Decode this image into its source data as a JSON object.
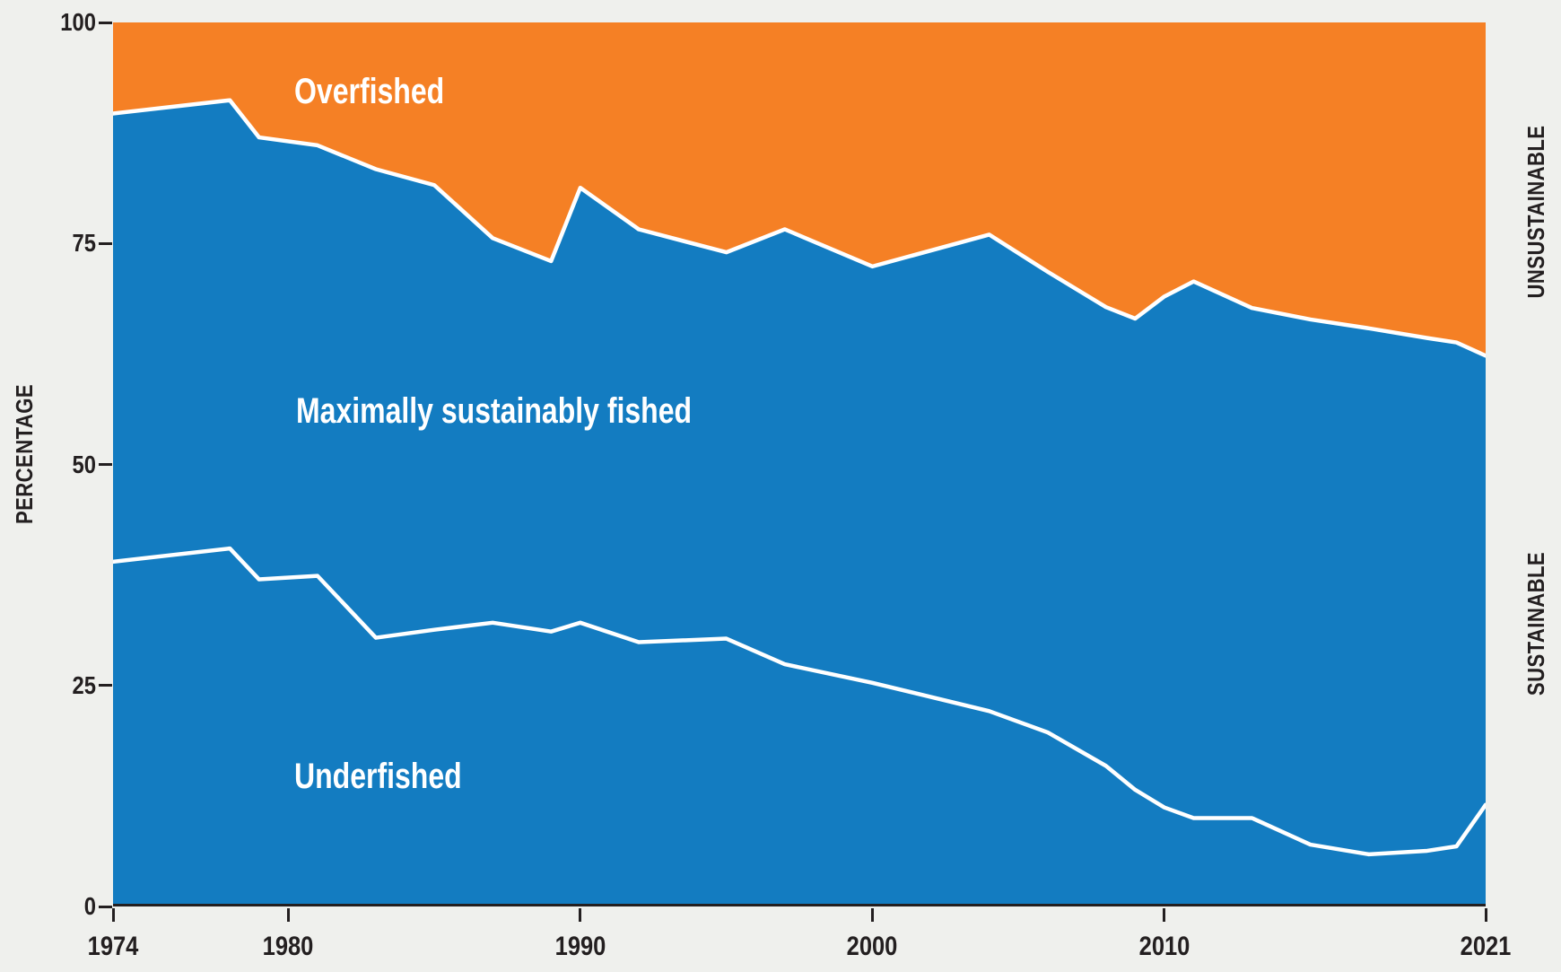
{
  "page": {
    "background_color": "#EFF0ED"
  },
  "chart_data": {
    "type": "area",
    "stacked": true,
    "title": "",
    "xlabel": "",
    "ylabel": "PERCENTAGE",
    "xlim": [
      1974,
      2021
    ],
    "ylim": [
      0,
      100
    ],
    "grid": false,
    "legend_position": "labels-inside-areas",
    "x": [
      1974,
      1978,
      1979,
      1981,
      1983,
      1985,
      1987,
      1989,
      1990,
      1992,
      1995,
      1997,
      2000,
      2004,
      2006,
      2008,
      2009,
      2010,
      2011,
      2013,
      2015,
      2017,
      2019,
      2020,
      2021
    ],
    "series": [
      {
        "name": "Underfished",
        "color": "#137CC1",
        "values": [
          39.0,
          40.5,
          37.0,
          37.4,
          30.4,
          31.3,
          32.1,
          31.1,
          32.1,
          29.9,
          30.3,
          27.4,
          25.3,
          22.1,
          19.7,
          15.9,
          13.2,
          11.2,
          10.0,
          10.0,
          7.0,
          5.9,
          6.3,
          6.8,
          11.5
        ]
      },
      {
        "name": "Maximally sustainably fished",
        "color": "#137CC1",
        "values": [
          50.7,
          50.7,
          50.0,
          48.7,
          53.0,
          50.3,
          43.5,
          41.9,
          49.2,
          46.7,
          43.7,
          49.2,
          47.1,
          53.9,
          52.1,
          51.9,
          53.3,
          57.8,
          60.7,
          57.7,
          59.4,
          59.5,
          58.0,
          57.0,
          50.8
        ]
      },
      {
        "name": "Overfished",
        "color": "#F58025",
        "values": [
          10.3,
          8.8,
          13.0,
          13.9,
          16.6,
          18.4,
          24.4,
          27.0,
          18.7,
          23.4,
          26.0,
          23.4,
          27.6,
          24.0,
          28.2,
          32.2,
          33.5,
          31.0,
          29.3,
          32.3,
          33.6,
          34.6,
          35.7,
          36.2,
          37.7
        ]
      }
    ],
    "y_ticks": [
      {
        "value": 0,
        "label": "0"
      },
      {
        "value": 25,
        "label": "25"
      },
      {
        "value": 50,
        "label": "50"
      },
      {
        "value": 75,
        "label": "75"
      },
      {
        "value": 100,
        "label": "100"
      }
    ],
    "x_ticks": [
      {
        "year": 1974,
        "label": "1974"
      },
      {
        "year": 1980,
        "label": "1980"
      },
      {
        "year": 1990,
        "label": "1990"
      },
      {
        "year": 2000,
        "label": "2000"
      },
      {
        "year": 2010,
        "label": "2010"
      },
      {
        "year": 2021,
        "label": "2021"
      }
    ],
    "area_labels": {
      "overfished": "Overfished",
      "maximally": "Maximally sustainably fished",
      "underfished": "Underfished"
    },
    "y_axis_title": "PERCENTAGE",
    "right_labels": {
      "top": "UNSUSTAINABLE",
      "bottom": "SUSTAINABLE"
    },
    "colors": {
      "blue": "#137CC1",
      "orange": "#F58025",
      "boundary_line": "#FFFFFF",
      "axis": "#231F20",
      "background": "#EFF0ED"
    }
  }
}
